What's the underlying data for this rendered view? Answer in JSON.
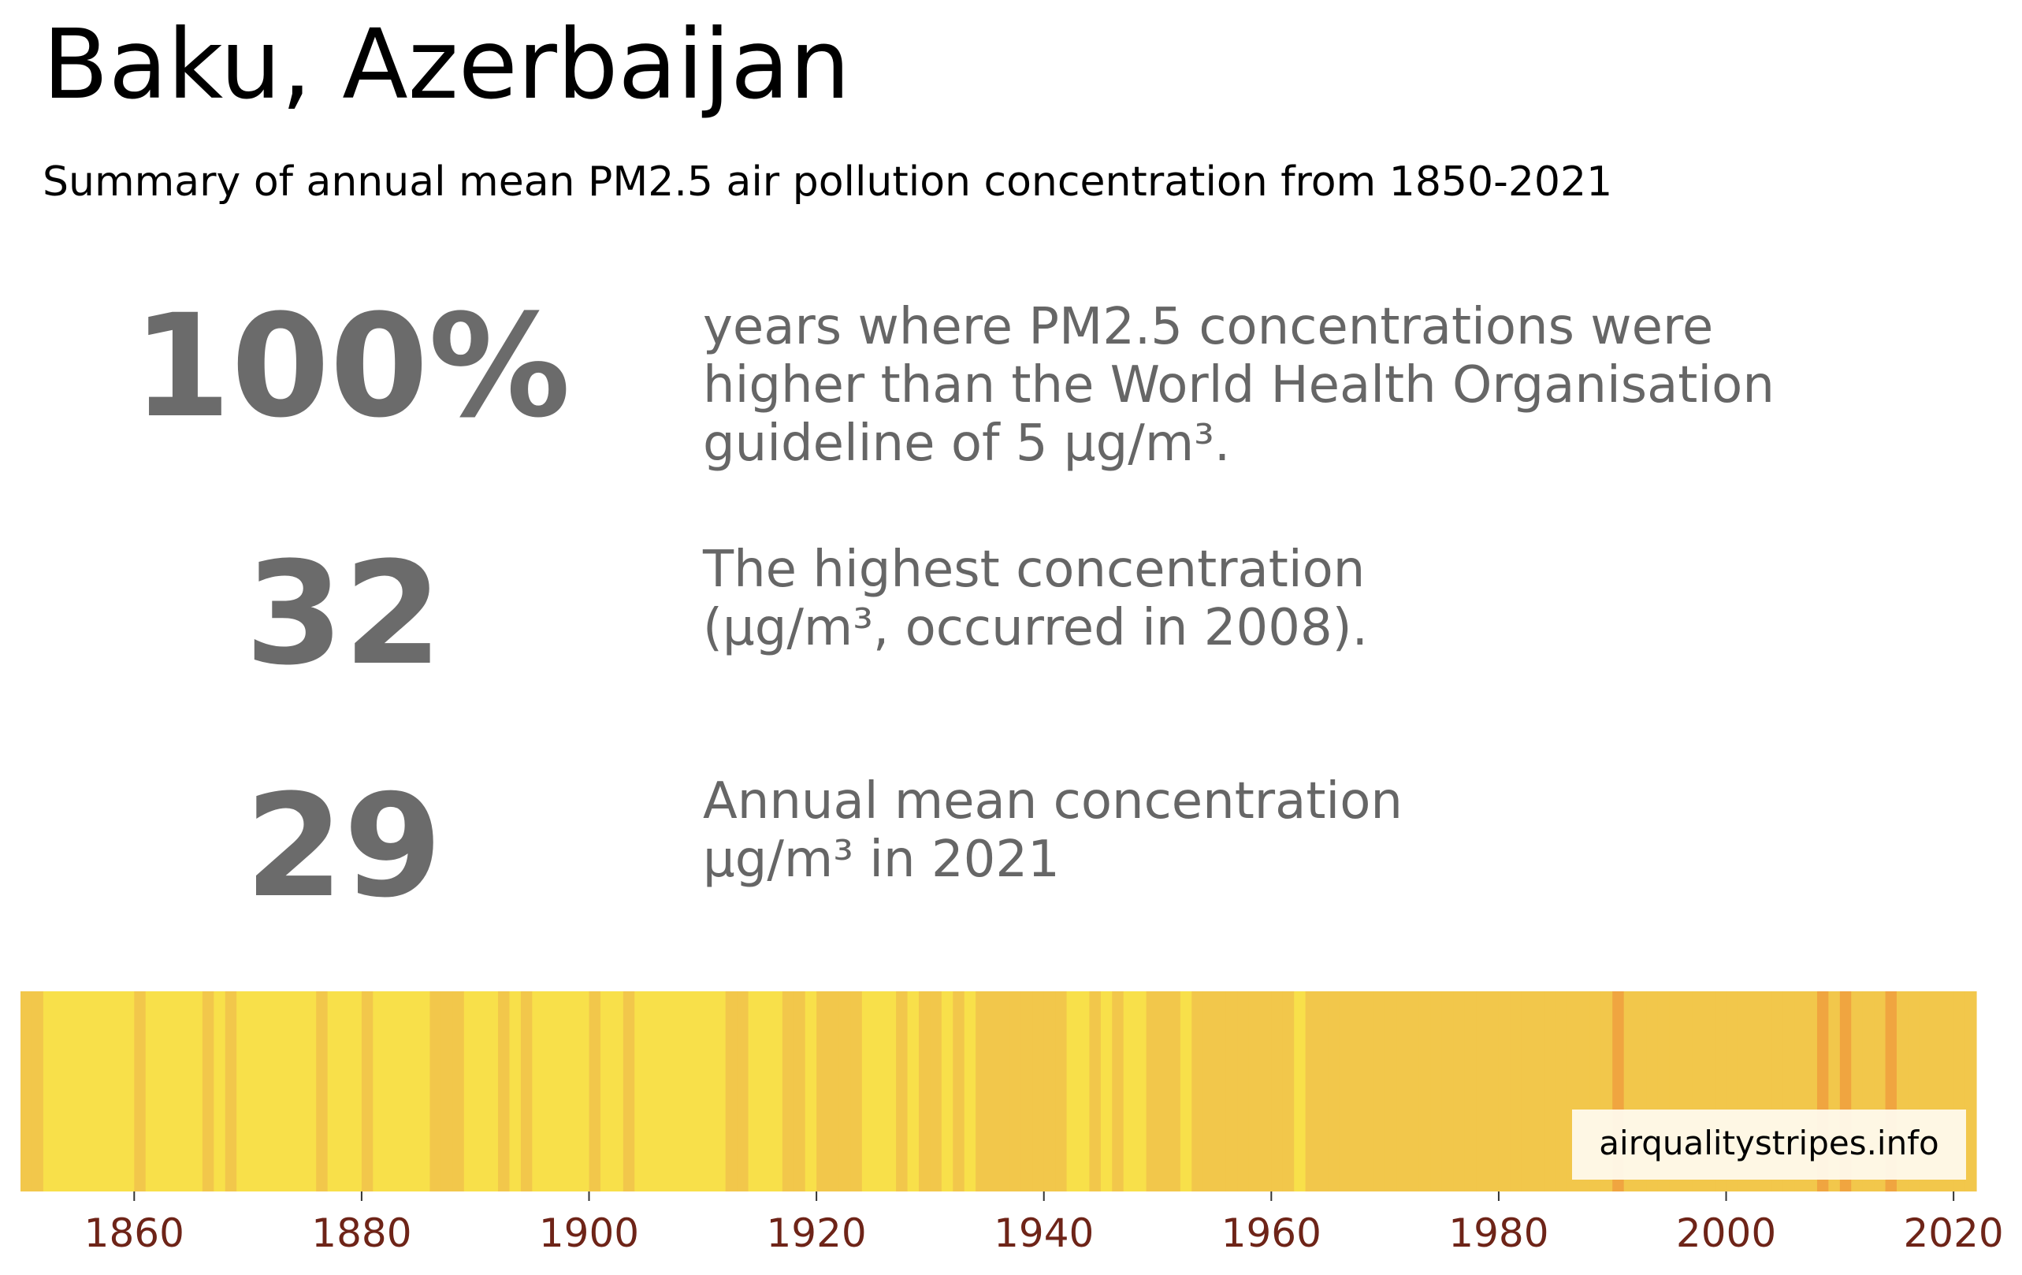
{
  "header": {
    "title": "Baku, Azerbaijan",
    "subtitle": "Summary of annual mean PM2.5 air pollution concentration from 1850-2021"
  },
  "stats": [
    {
      "value": "100%",
      "text": "years where PM2.5 concentrations were\nhigher than the World Health Organisation\nguideline of 5 µg/m³."
    },
    {
      "value": "32",
      "text": "The highest concentration\n(µg/m³, occurred in 2008)."
    },
    {
      "value": "29",
      "text": "Annual mean concentration\nµg/m³ in 2021"
    }
  ],
  "watermark": "airqualitystripes.info",
  "colors": {
    "stat_number": "#6b6b6b",
    "stat_text": "#666666",
    "tick_label": "#6e2418",
    "level_low": "#f8e04a",
    "level_mid": "#f2c74b",
    "level_high": "#f0a540"
  },
  "chart_data": {
    "type": "heatmap",
    "description_of_encoding": "",
    "x_range": [
      1850,
      2021
    ],
    "x_ticks": [
      1860,
      1880,
      1900,
      1920,
      1940,
      1960,
      1980,
      2000,
      2020
    ],
    "level_colors": [
      "#f8e04a",
      "#f2c74b",
      "#f0a540"
    ],
    "stripes": [
      {
        "year": 1850,
        "level": 1
      },
      {
        "year": 1851,
        "level": 1
      },
      {
        "year": 1852,
        "level": 0
      },
      {
        "year": 1853,
        "level": 0
      },
      {
        "year": 1854,
        "level": 0
      },
      {
        "year": 1855,
        "level": 0
      },
      {
        "year": 1856,
        "level": 0
      },
      {
        "year": 1857,
        "level": 0
      },
      {
        "year": 1858,
        "level": 0
      },
      {
        "year": 1859,
        "level": 0
      },
      {
        "year": 1860,
        "level": 1
      },
      {
        "year": 1861,
        "level": 0
      },
      {
        "year": 1862,
        "level": 0
      },
      {
        "year": 1863,
        "level": 0
      },
      {
        "year": 1864,
        "level": 0
      },
      {
        "year": 1865,
        "level": 0
      },
      {
        "year": 1866,
        "level": 1
      },
      {
        "year": 1867,
        "level": 0
      },
      {
        "year": 1868,
        "level": 1
      },
      {
        "year": 1869,
        "level": 0
      },
      {
        "year": 1870,
        "level": 0
      },
      {
        "year": 1871,
        "level": 0
      },
      {
        "year": 1872,
        "level": 0
      },
      {
        "year": 1873,
        "level": 0
      },
      {
        "year": 1874,
        "level": 0
      },
      {
        "year": 1875,
        "level": 0
      },
      {
        "year": 1876,
        "level": 1
      },
      {
        "year": 1877,
        "level": 0
      },
      {
        "year": 1878,
        "level": 0
      },
      {
        "year": 1879,
        "level": 0
      },
      {
        "year": 1880,
        "level": 1
      },
      {
        "year": 1881,
        "level": 0
      },
      {
        "year": 1882,
        "level": 0
      },
      {
        "year": 1883,
        "level": 0
      },
      {
        "year": 1884,
        "level": 0
      },
      {
        "year": 1885,
        "level": 0
      },
      {
        "year": 1886,
        "level": 1
      },
      {
        "year": 1887,
        "level": 1
      },
      {
        "year": 1888,
        "level": 1
      },
      {
        "year": 1889,
        "level": 0
      },
      {
        "year": 1890,
        "level": 0
      },
      {
        "year": 1891,
        "level": 0
      },
      {
        "year": 1892,
        "level": 1
      },
      {
        "year": 1893,
        "level": 0
      },
      {
        "year": 1894,
        "level": 1
      },
      {
        "year": 1895,
        "level": 0
      },
      {
        "year": 1896,
        "level": 0
      },
      {
        "year": 1897,
        "level": 0
      },
      {
        "year": 1898,
        "level": 0
      },
      {
        "year": 1899,
        "level": 0
      },
      {
        "year": 1900,
        "level": 1
      },
      {
        "year": 1901,
        "level": 0
      },
      {
        "year": 1902,
        "level": 0
      },
      {
        "year": 1903,
        "level": 1
      },
      {
        "year": 1904,
        "level": 0
      },
      {
        "year": 1905,
        "level": 0
      },
      {
        "year": 1906,
        "level": 0
      },
      {
        "year": 1907,
        "level": 0
      },
      {
        "year": 1908,
        "level": 0
      },
      {
        "year": 1909,
        "level": 0
      },
      {
        "year": 1910,
        "level": 0
      },
      {
        "year": 1911,
        "level": 0
      },
      {
        "year": 1912,
        "level": 1
      },
      {
        "year": 1913,
        "level": 1
      },
      {
        "year": 1914,
        "level": 0
      },
      {
        "year": 1915,
        "level": 0
      },
      {
        "year": 1916,
        "level": 0
      },
      {
        "year": 1917,
        "level": 1
      },
      {
        "year": 1918,
        "level": 1
      },
      {
        "year": 1919,
        "level": 0
      },
      {
        "year": 1920,
        "level": 1
      },
      {
        "year": 1921,
        "level": 1
      },
      {
        "year": 1922,
        "level": 1
      },
      {
        "year": 1923,
        "level": 1
      },
      {
        "year": 1924,
        "level": 0
      },
      {
        "year": 1925,
        "level": 0
      },
      {
        "year": 1926,
        "level": 0
      },
      {
        "year": 1927,
        "level": 1
      },
      {
        "year": 1928,
        "level": 0
      },
      {
        "year": 1929,
        "level": 1
      },
      {
        "year": 1930,
        "level": 1
      },
      {
        "year": 1931,
        "level": 0
      },
      {
        "year": 1932,
        "level": 1
      },
      {
        "year": 1933,
        "level": 0
      },
      {
        "year": 1934,
        "level": 1
      },
      {
        "year": 1935,
        "level": 1
      },
      {
        "year": 1936,
        "level": 1
      },
      {
        "year": 1937,
        "level": 1
      },
      {
        "year": 1938,
        "level": 1
      },
      {
        "year": 1939,
        "level": 1
      },
      {
        "year": 1940,
        "level": 1
      },
      {
        "year": 1941,
        "level": 1
      },
      {
        "year": 1942,
        "level": 0
      },
      {
        "year": 1943,
        "level": 0
      },
      {
        "year": 1944,
        "level": 1
      },
      {
        "year": 1945,
        "level": 0
      },
      {
        "year": 1946,
        "level": 1
      },
      {
        "year": 1947,
        "level": 0
      },
      {
        "year": 1948,
        "level": 0
      },
      {
        "year": 1949,
        "level": 1
      },
      {
        "year": 1950,
        "level": 1
      },
      {
        "year": 1951,
        "level": 1
      },
      {
        "year": 1952,
        "level": 0
      },
      {
        "year": 1953,
        "level": 1
      },
      {
        "year": 1954,
        "level": 1
      },
      {
        "year": 1955,
        "level": 1
      },
      {
        "year": 1956,
        "level": 1
      },
      {
        "year": 1957,
        "level": 1
      },
      {
        "year": 1958,
        "level": 1
      },
      {
        "year": 1959,
        "level": 1
      },
      {
        "year": 1960,
        "level": 1
      },
      {
        "year": 1961,
        "level": 1
      },
      {
        "year": 1962,
        "level": 0
      },
      {
        "year": 1963,
        "level": 1
      },
      {
        "year": 1964,
        "level": 1
      },
      {
        "year": 1965,
        "level": 1
      },
      {
        "year": 1966,
        "level": 1
      },
      {
        "year": 1967,
        "level": 1
      },
      {
        "year": 1968,
        "level": 1
      },
      {
        "year": 1969,
        "level": 1
      },
      {
        "year": 1970,
        "level": 1
      },
      {
        "year": 1971,
        "level": 1
      },
      {
        "year": 1972,
        "level": 1
      },
      {
        "year": 1973,
        "level": 1
      },
      {
        "year": 1974,
        "level": 1
      },
      {
        "year": 1975,
        "level": 1
      },
      {
        "year": 1976,
        "level": 1
      },
      {
        "year": 1977,
        "level": 1
      },
      {
        "year": 1978,
        "level": 1
      },
      {
        "year": 1979,
        "level": 1
      },
      {
        "year": 1980,
        "level": 1
      },
      {
        "year": 1981,
        "level": 1
      },
      {
        "year": 1982,
        "level": 1
      },
      {
        "year": 1983,
        "level": 1
      },
      {
        "year": 1984,
        "level": 1
      },
      {
        "year": 1985,
        "level": 1
      },
      {
        "year": 1986,
        "level": 1
      },
      {
        "year": 1987,
        "level": 1
      },
      {
        "year": 1988,
        "level": 1
      },
      {
        "year": 1989,
        "level": 1
      },
      {
        "year": 1990,
        "level": 2
      },
      {
        "year": 1991,
        "level": 1
      },
      {
        "year": 1992,
        "level": 1
      },
      {
        "year": 1993,
        "level": 1
      },
      {
        "year": 1994,
        "level": 1
      },
      {
        "year": 1995,
        "level": 1
      },
      {
        "year": 1996,
        "level": 1
      },
      {
        "year": 1997,
        "level": 1
      },
      {
        "year": 1998,
        "level": 1
      },
      {
        "year": 1999,
        "level": 1
      },
      {
        "year": 2000,
        "level": 1
      },
      {
        "year": 2001,
        "level": 1
      },
      {
        "year": 2002,
        "level": 1
      },
      {
        "year": 2003,
        "level": 1
      },
      {
        "year": 2004,
        "level": 1
      },
      {
        "year": 2005,
        "level": 1
      },
      {
        "year": 2006,
        "level": 1
      },
      {
        "year": 2007,
        "level": 1
      },
      {
        "year": 2008,
        "level": 2
      },
      {
        "year": 2009,
        "level": 1
      },
      {
        "year": 2010,
        "level": 2
      },
      {
        "year": 2011,
        "level": 1
      },
      {
        "year": 2012,
        "level": 1
      },
      {
        "year": 2013,
        "level": 1
      },
      {
        "year": 2014,
        "level": 2
      },
      {
        "year": 2015,
        "level": 1
      },
      {
        "year": 2016,
        "level": 1
      },
      {
        "year": 2017,
        "level": 1
      },
      {
        "year": 2018,
        "level": 1
      },
      {
        "year": 2019,
        "level": 1
      },
      {
        "year": 2020,
        "level": 1
      },
      {
        "year": 2021,
        "level": 1
      }
    ],
    "title": "",
    "xlabel": "",
    "ylabel": "",
    "grid": false,
    "legend": "none"
  }
}
